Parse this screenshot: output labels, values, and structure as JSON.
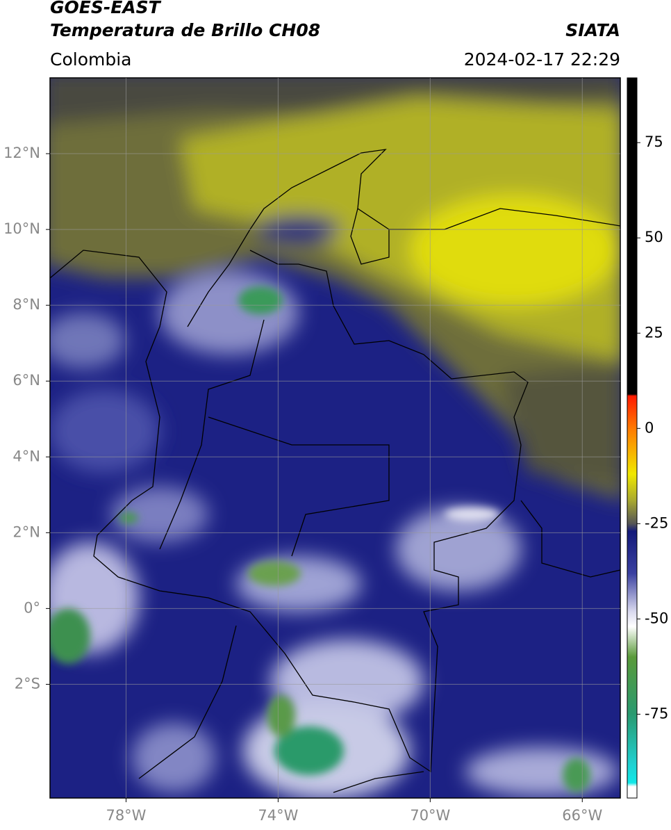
{
  "header": {
    "title": "GOES-EAST",
    "subtitle": "Temperatura de Brillo CH08",
    "source": "SIATA",
    "region": "Colombia",
    "datetime": "2024-02-17 22:29"
  },
  "map": {
    "xlim": [
      -80,
      -65
    ],
    "ylim": [
      -5,
      14
    ],
    "xticks": [
      {
        "value": -78,
        "label": "78°W"
      },
      {
        "value": -74,
        "label": "74°W"
      },
      {
        "value": -70,
        "label": "70°W"
      },
      {
        "value": -66,
        "label": "66°W"
      }
    ],
    "yticks": [
      {
        "value": 12,
        "label": "12°N"
      },
      {
        "value": 10,
        "label": "10°N"
      },
      {
        "value": 8,
        "label": "8°N"
      },
      {
        "value": 6,
        "label": "6°N"
      },
      {
        "value": 4,
        "label": "4°N"
      },
      {
        "value": 2,
        "label": "2°N"
      },
      {
        "value": 0,
        "label": "0°"
      },
      {
        "value": -2,
        "label": "2°S"
      }
    ],
    "grid": true
  },
  "colorbar": {
    "lim": [
      -97,
      92
    ],
    "ticks": [
      75,
      50,
      25,
      0,
      -25,
      -50,
      -75
    ],
    "stops": [
      {
        "value": 92,
        "color": "#000000"
      },
      {
        "value": 9,
        "color": "#000000"
      },
      {
        "value": 8.5,
        "color": "#ff1a00"
      },
      {
        "value": 0,
        "color": "#ff7a00"
      },
      {
        "value": -12,
        "color": "#f0e800"
      },
      {
        "value": -19,
        "color": "#a8a830"
      },
      {
        "value": -25,
        "color": "#555555"
      },
      {
        "value": -27,
        "color": "#141a7a"
      },
      {
        "value": -38,
        "color": "#3a40a0"
      },
      {
        "value": -48,
        "color": "#d8d8ee"
      },
      {
        "value": -52,
        "color": "#ffffff"
      },
      {
        "value": -60,
        "color": "#5a9a3a"
      },
      {
        "value": -75,
        "color": "#2a9a70"
      },
      {
        "value": -88,
        "color": "#20d0d0"
      },
      {
        "value": -93,
        "color": "#10e8e8"
      },
      {
        "value": -94,
        "color": "#ffffff"
      },
      {
        "value": -97,
        "color": "#ffffff"
      }
    ]
  }
}
